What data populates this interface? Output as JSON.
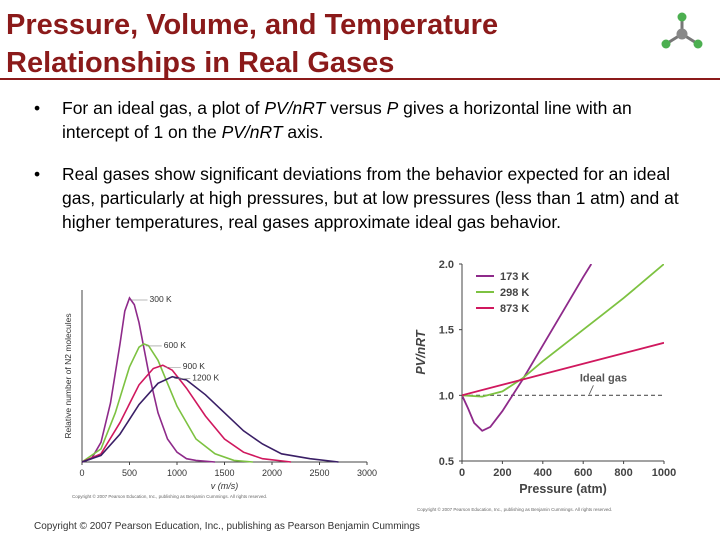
{
  "title": {
    "line1": "Pressure, Volume, and Temperature",
    "line2": "Relationships in Real Gases"
  },
  "bullets": [
    {
      "symbol": "•",
      "parts": [
        "For an ideal gas, a plot of ",
        "PV/nRT",
        " versus ",
        "P",
        " gives a horizontal line with an intercept of 1 on the ",
        "PV/nRT",
        " axis."
      ]
    },
    {
      "symbol": "•",
      "text": "Real gases show significant deviations from the behavior expected for an ideal gas, particularly at high pressures, but at low pressures (less than 1 atm) and at higher temperatures, real gases approximate ideal gas behavior."
    }
  ],
  "colors": {
    "title": "#8b1a1a",
    "c173": "#8e2a8a",
    "c298": "#7dc241",
    "c873": "#d0185e",
    "c1200": "#3a1f66"
  },
  "logo_icon": "molecule-icon",
  "chart_data": [
    {
      "type": "line",
      "xlabel": "v (m/s)",
      "ylabel": "Relative number of N2 molecules",
      "xlim": [
        0,
        3000
      ],
      "xticks": [
        "0",
        "500",
        "1000",
        "1500",
        "2000",
        "2500",
        "3000"
      ],
      "series": [
        {
          "name": "300 K",
          "color": "#8e2a8a",
          "points": [
            [
              0,
              0
            ],
            [
              100,
              0.02
            ],
            [
              200,
              0.12
            ],
            [
              300,
              0.36
            ],
            [
              400,
              0.72
            ],
            [
              450,
              0.92
            ],
            [
              500,
              1.0
            ],
            [
              550,
              0.96
            ],
            [
              600,
              0.85
            ],
            [
              700,
              0.55
            ],
            [
              800,
              0.3
            ],
            [
              900,
              0.14
            ],
            [
              1000,
              0.06
            ],
            [
              1100,
              0.02
            ],
            [
              1200,
              0.01
            ],
            [
              1400,
              0
            ]
          ]
        },
        {
          "name": "600 K",
          "color": "#7dc241",
          "points": [
            [
              0,
              0
            ],
            [
              200,
              0.08
            ],
            [
              350,
              0.3
            ],
            [
              500,
              0.58
            ],
            [
              600,
              0.7
            ],
            [
              650,
              0.72
            ],
            [
              700,
              0.71
            ],
            [
              800,
              0.62
            ],
            [
              900,
              0.48
            ],
            [
              1000,
              0.34
            ],
            [
              1200,
              0.14
            ],
            [
              1400,
              0.05
            ],
            [
              1600,
              0.01
            ],
            [
              1800,
              0
            ]
          ]
        },
        {
          "name": "900 K",
          "color": "#d0185e",
          "points": [
            [
              0,
              0
            ],
            [
              200,
              0.05
            ],
            [
              400,
              0.24
            ],
            [
              600,
              0.47
            ],
            [
              750,
              0.57
            ],
            [
              850,
              0.59
            ],
            [
              950,
              0.56
            ],
            [
              1100,
              0.45
            ],
            [
              1300,
              0.28
            ],
            [
              1500,
              0.14
            ],
            [
              1700,
              0.06
            ],
            [
              1900,
              0.02
            ],
            [
              2200,
              0
            ]
          ]
        },
        {
          "name": "1200 K",
          "color": "#3a1f66",
          "points": [
            [
              0,
              0
            ],
            [
              200,
              0.04
            ],
            [
              400,
              0.17
            ],
            [
              600,
              0.35
            ],
            [
              800,
              0.48
            ],
            [
              950,
              0.52
            ],
            [
              1100,
              0.5
            ],
            [
              1300,
              0.41
            ],
            [
              1500,
              0.3
            ],
            [
              1700,
              0.19
            ],
            [
              1900,
              0.11
            ],
            [
              2100,
              0.05
            ],
            [
              2400,
              0.02
            ],
            [
              2700,
              0
            ]
          ]
        }
      ],
      "copyright": "Copyright © 2007 Pearson Education, Inc., publishing as Benjamin Cummings. All rights reserved."
    },
    {
      "type": "line",
      "xlabel": "Pressure (atm)",
      "ylabel": "PV/nRT",
      "xlim": [
        0,
        1000
      ],
      "ylim": [
        0.5,
        2.0
      ],
      "xticks": [
        "0",
        "200",
        "400",
        "600",
        "800",
        "1000"
      ],
      "yticks": [
        "0.5",
        "1.0",
        "1.5",
        "2.0"
      ],
      "series": [
        {
          "name": "173 K",
          "color": "#8e2a8a",
          "points": [
            [
              0,
              1.0
            ],
            [
              30,
              0.9
            ],
            [
              60,
              0.79
            ],
            [
              100,
              0.73
            ],
            [
              140,
              0.76
            ],
            [
              200,
              0.88
            ],
            [
              300,
              1.12
            ],
            [
              400,
              1.38
            ],
            [
              500,
              1.64
            ],
            [
              600,
              1.9
            ],
            [
              640,
              2.0
            ]
          ]
        },
        {
          "name": "298 K",
          "color": "#7dc241",
          "points": [
            [
              0,
              1.0
            ],
            [
              100,
              0.99
            ],
            [
              200,
              1.03
            ],
            [
              300,
              1.13
            ],
            [
              400,
              1.26
            ],
            [
              500,
              1.38
            ],
            [
              600,
              1.5
            ],
            [
              700,
              1.62
            ],
            [
              800,
              1.74
            ],
            [
              900,
              1.87
            ],
            [
              1000,
              2.0
            ]
          ]
        },
        {
          "name": "873 K",
          "color": "#d0185e",
          "points": [
            [
              0,
              1.0
            ],
            [
              200,
              1.08
            ],
            [
              400,
              1.16
            ],
            [
              600,
              1.24
            ],
            [
              800,
              1.32
            ],
            [
              1000,
              1.4
            ]
          ]
        }
      ],
      "annotation": "Ideal gas",
      "ideal_value": 1.0,
      "copyright": "Copyright © 2007 Pearson Education, Inc., publishing as Benjamin Cummings. All rights reserved."
    }
  ],
  "footer": "Copyright © 2007 Pearson Education, Inc., publishing as Pearson Benjamin Cummings"
}
